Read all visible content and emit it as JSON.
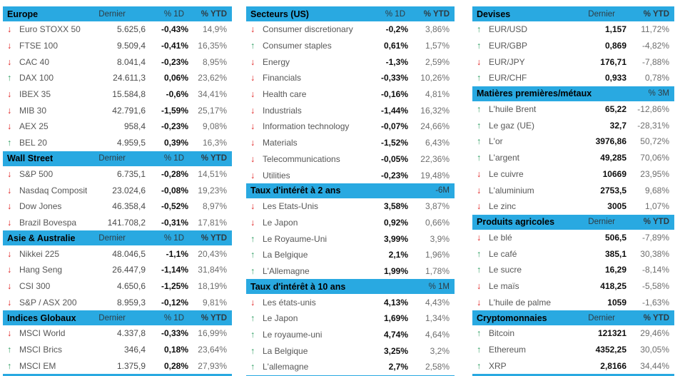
{
  "colors": {
    "header_background": "#29A9E1",
    "up_arrow": "#2E9E62",
    "down_arrow": "#E01A1A",
    "bold_value": "#0d0d0d",
    "muted_value": "#6e6e6e"
  },
  "icons": {
    "up": "↑",
    "down": "↓"
  },
  "columns": [
    {
      "name": "indices",
      "sections": [
        {
          "title": "Europe",
          "headers": [
            "Dernier",
            "% 1D",
            "% YTD"
          ],
          "rows": [
            {
              "dir": "down",
              "name": "Euro STOXX 50",
              "values": [
                "5.625,6",
                "-0,43%",
                "14,9%"
              ]
            },
            {
              "dir": "down",
              "name": "FTSE 100",
              "values": [
                "9.509,4",
                "-0,41%",
                "16,35%"
              ]
            },
            {
              "dir": "down",
              "name": "CAC 40",
              "values": [
                "8.041,4",
                "-0,23%",
                "8,95%"
              ]
            },
            {
              "dir": "up",
              "name": "DAX 100",
              "values": [
                "24.611,3",
                "0,06%",
                "23,62%"
              ]
            },
            {
              "dir": "down",
              "name": "IBEX 35",
              "values": [
                "15.584,8",
                "-0,6%",
                "34,41%"
              ]
            },
            {
              "dir": "down",
              "name": "MIB 30",
              "values": [
                "42.791,6",
                "-1,59%",
                "25,17%"
              ]
            },
            {
              "dir": "down",
              "name": "AEX 25",
              "values": [
                "958,4",
                "-0,23%",
                "9,08%"
              ]
            },
            {
              "dir": "up",
              "name": "BEL 20",
              "values": [
                "4.959,5",
                "0,39%",
                "16,3%"
              ]
            }
          ]
        },
        {
          "title": "Wall Street",
          "headers": [
            "Dernier",
            "% 1D",
            "% YTD"
          ],
          "rows": [
            {
              "dir": "down",
              "name": "S&P 500",
              "values": [
                "6.735,1",
                "-0,28%",
                "14,51%"
              ]
            },
            {
              "dir": "down",
              "name": "Nasdaq Composite",
              "values": [
                "23.024,6",
                "-0,08%",
                "19,23%"
              ]
            },
            {
              "dir": "down",
              "name": "Dow Jones",
              "values": [
                "46.358,4",
                "-0,52%",
                "8,97%"
              ]
            },
            {
              "dir": "down",
              "name": "Brazil Bovespa",
              "values": [
                "141.708,2",
                "-0,31%",
                "17,81%"
              ]
            }
          ]
        },
        {
          "title": "Asie & Australie",
          "headers": [
            "Dernier",
            "% 1D",
            "% YTD"
          ],
          "rows": [
            {
              "dir": "down",
              "name": "Nikkei 225",
              "values": [
                "48.046,5",
                "-1,1%",
                "20,43%"
              ]
            },
            {
              "dir": "down",
              "name": "Hang Seng",
              "values": [
                "26.447,9",
                "-1,14%",
                "31,84%"
              ]
            },
            {
              "dir": "down",
              "name": "CSI 300",
              "values": [
                "4.650,6",
                "-1,25%",
                "18,19%"
              ]
            },
            {
              "dir": "down",
              "name": "S&P / ASX 200",
              "values": [
                "8.959,3",
                "-0,12%",
                "9,81%"
              ]
            }
          ]
        },
        {
          "title": "Indices Globaux",
          "headers": [
            "Dernier",
            "% 1D",
            "% YTD"
          ],
          "rows": [
            {
              "dir": "down",
              "name": "MSCI World",
              "values": [
                "4.337,8",
                "-0,33%",
                "16,99%"
              ]
            },
            {
              "dir": "up",
              "name": "MSCI Brics",
              "values": [
                "346,4",
                "0,18%",
                "23,64%"
              ]
            },
            {
              "dir": "up",
              "name": "MSCI EM",
              "values": [
                "1.375,9",
                "0,28%",
                "27,93%"
              ]
            }
          ]
        }
      ]
    },
    {
      "name": "secteurs-et-taux",
      "sections": [
        {
          "title": "Secteurs (US)",
          "headers": [
            "% 1D",
            "% YTD"
          ],
          "rows": [
            {
              "dir": "down",
              "name": "Consumer discretionary",
              "values": [
                "-0,2%",
                "3,86%"
              ]
            },
            {
              "dir": "up",
              "name": "Consumer staples",
              "values": [
                "0,61%",
                "1,57%"
              ]
            },
            {
              "dir": "down",
              "name": "Energy",
              "values": [
                "-1,3%",
                "2,59%"
              ]
            },
            {
              "dir": "down",
              "name": "Financials",
              "values": [
                "-0,33%",
                "10,26%"
              ]
            },
            {
              "dir": "down",
              "name": "Health care",
              "values": [
                "-0,16%",
                "4,81%"
              ]
            },
            {
              "dir": "down",
              "name": "Industrials",
              "values": [
                "-1,44%",
                "16,32%"
              ]
            },
            {
              "dir": "down",
              "name": "Information technology",
              "values": [
                "-0,07%",
                "24,66%"
              ]
            },
            {
              "dir": "down",
              "name": "Materials",
              "values": [
                "-1,52%",
                "6,43%"
              ]
            },
            {
              "dir": "down",
              "name": "Telecommunications",
              "values": [
                "-0,05%",
                "22,36%"
              ]
            },
            {
              "dir": "down",
              "name": "Utilities",
              "values": [
                "-0,23%",
                "19,48%"
              ]
            }
          ]
        },
        {
          "title": "Taux d'intérêt à 2 ans",
          "period_label": "-6M",
          "rows": [
            {
              "dir": "down",
              "name": "Les Etats-Unis",
              "values": [
                "3,58%",
                "3,87%"
              ]
            },
            {
              "dir": "down",
              "name": "Le Japon",
              "values": [
                "0,92%",
                "0,66%"
              ]
            },
            {
              "dir": "up",
              "name": "Le Royaume-Uni",
              "values": [
                "3,99%",
                "3,9%"
              ]
            },
            {
              "dir": "up",
              "name": "La Belgique",
              "values": [
                "2,1%",
                "1,96%"
              ]
            },
            {
              "dir": "up",
              "name": "L'Allemagne",
              "values": [
                "1,99%",
                "1,78%"
              ]
            }
          ]
        },
        {
          "title": "Taux d'intérêt à 10 ans",
          "period_label": "% 1M",
          "rows": [
            {
              "dir": "down",
              "name": "Les états-unis",
              "values": [
                "4,13%",
                "4,43%"
              ]
            },
            {
              "dir": "up",
              "name": "Le Japon",
              "values": [
                "1,69%",
                "1,34%"
              ]
            },
            {
              "dir": "up",
              "name": "Le royaume-uni",
              "values": [
                "4,74%",
                "4,64%"
              ]
            },
            {
              "dir": "up",
              "name": "La Belgique",
              "values": [
                "3,25%",
                "3,2%"
              ]
            },
            {
              "dir": "up",
              "name": "L'allemagne",
              "values": [
                "2,7%",
                "2,58%"
              ]
            }
          ]
        }
      ]
    },
    {
      "name": "devises-matieres-crypto",
      "sections": [
        {
          "title": "Devises",
          "headers": [
            "Dernier",
            "% YTD"
          ],
          "rows": [
            {
              "dir": "up",
              "name": "EUR/USD",
              "values": [
                "1,157",
                "11,72%"
              ]
            },
            {
              "dir": "up",
              "name": "EUR/GBP",
              "values": [
                "0,869",
                "-4,82%"
              ]
            },
            {
              "dir": "down",
              "name": "EUR/JPY",
              "values": [
                "176,71",
                "-7,88%"
              ]
            },
            {
              "dir": "up",
              "name": "EUR/CHF",
              "values": [
                "0,933",
                "0,78%"
              ]
            }
          ]
        },
        {
          "title": "Matières premières/métaux",
          "period_label": "% 3M",
          "rows": [
            {
              "dir": "up",
              "name": "L'huile Brent",
              "values": [
                "65,22",
                "-12,86%"
              ]
            },
            {
              "dir": "up",
              "name": "Le gaz (UE)",
              "values": [
                "32,7",
                "-28,31%"
              ]
            },
            {
              "dir": "up",
              "name": "L'or",
              "values": [
                "3976,86",
                "50,72%"
              ]
            },
            {
              "dir": "up",
              "name": "L'argent",
              "values": [
                "49,285",
                "70,06%"
              ]
            },
            {
              "dir": "down",
              "name": "Le cuivre",
              "values": [
                "10669",
                "23,95%"
              ]
            },
            {
              "dir": "down",
              "name": "L'aluminium",
              "values": [
                "2753,5",
                "9,68%"
              ]
            },
            {
              "dir": "down",
              "name": "Le zinc",
              "values": [
                "3005",
                "1,07%"
              ]
            }
          ]
        },
        {
          "title": "Produits agricoles",
          "headers": [
            "Dernier",
            "% YTD"
          ],
          "rows": [
            {
              "dir": "down",
              "name": "Le blé",
              "values": [
                "506,5",
                "-7,89%"
              ]
            },
            {
              "dir": "up",
              "name": "Le café",
              "values": [
                "385,1",
                "30,38%"
              ]
            },
            {
              "dir": "up",
              "name": "Le sucre",
              "values": [
                "16,29",
                "-8,14%"
              ]
            },
            {
              "dir": "down",
              "name": "Le maïs",
              "values": [
                "418,25",
                "-5,58%"
              ]
            },
            {
              "dir": "down",
              "name": "L'huile de palme",
              "values": [
                "1059",
                "-1,63%"
              ]
            }
          ]
        },
        {
          "title": "Cryptomonnaies",
          "headers": [
            "Dernier",
            "% YTD"
          ],
          "rows": [
            {
              "dir": "up",
              "name": "Bitcoin",
              "values": [
                "121321",
                "29,46%"
              ]
            },
            {
              "dir": "up",
              "name": "Ethereum",
              "values": [
                "4352,25",
                "30,05%"
              ]
            },
            {
              "dir": "up",
              "name": "XRP",
              "values": [
                "2,8166",
                "34,44%"
              ]
            }
          ]
        }
      ]
    }
  ]
}
